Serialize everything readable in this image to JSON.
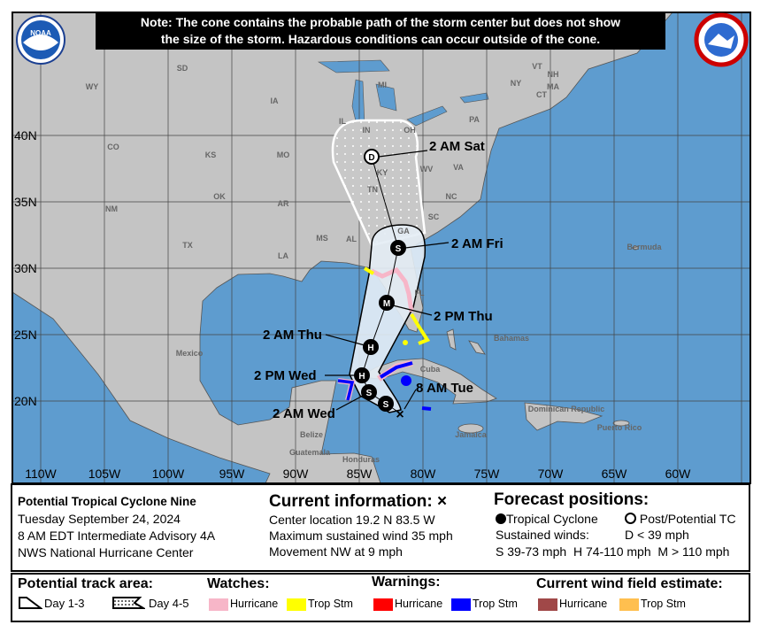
{
  "note": {
    "line1": "Note: The cone contains the probable path of the storm center but does not show",
    "line2": "the size of the storm. Hazardous conditions can occur outside of the cone."
  },
  "logos": {
    "left": "NOAA",
    "right": "NATIONAL WEATHER SERVICE"
  },
  "lat_labels": [
    "40N",
    "35N",
    "30N",
    "25N",
    "20N"
  ],
  "lon_labels": [
    "110W",
    "105W",
    "100W",
    "95W",
    "90W",
    "85W",
    "80W",
    "75W",
    "70W",
    "65W",
    "60W"
  ],
  "place_labels": [
    "WY",
    "SD",
    "IA",
    "MI",
    "VT",
    "NH",
    "NY",
    "MA",
    "CT",
    "PA",
    "CO",
    "KS",
    "MO",
    "IL",
    "IN",
    "OH",
    "WV",
    "VA",
    "KY",
    "NM",
    "OK",
    "AR",
    "TN",
    "NC",
    "SC",
    "TX",
    "MS",
    "AL",
    "GA",
    "LA",
    "FL",
    "Bermuda",
    "Bahamas",
    "Cuba",
    "Mexico",
    "Belize",
    "Guatemala",
    "Honduras",
    "Jamaica",
    "Dominican Republic",
    "Puerto Rico"
  ],
  "forecast_points": [
    {
      "letter": "D",
      "label": "2 AM Sat",
      "type": "post-potential"
    },
    {
      "letter": "S",
      "label": "2 AM Fri",
      "type": "tropical"
    },
    {
      "letter": "M",
      "label": "2 PM Thu",
      "type": "tropical"
    },
    {
      "letter": "H",
      "label": "2 AM Thu",
      "type": "tropical"
    },
    {
      "letter": "H",
      "label": "2 PM Wed",
      "type": "tropical"
    },
    {
      "letter": "S",
      "label": "2 AM Wed",
      "type": "tropical"
    },
    {
      "letter": "S",
      "label": "",
      "type": "tropical"
    },
    {
      "letter": "X",
      "label": "8 AM Tue",
      "type": "current"
    }
  ],
  "info": {
    "storm": "Potential Tropical Cyclone Nine",
    "date": "Tuesday September 24, 2024",
    "advisory": "8 AM EDT Intermediate Advisory 4A",
    "center": "NWS National Hurricane Center",
    "current_title": "Current information: ×",
    "location": "Center location 19.2 N 83.5 W",
    "wind": "Maximum sustained wind 35 mph",
    "movement": "Movement NW at 9 mph",
    "forecast_title": "Forecast positions:",
    "tc": "Tropical Cyclone",
    "ptc": "Post/Potential TC",
    "sust": "Sustained winds:",
    "d": "D < 39 mph",
    "shm": "S 39-73 mph  H 74-110 mph  M > 110 mph"
  },
  "legend": {
    "track_title": "Potential track area:",
    "day13": "Day 1-3",
    "day45": "Day 4-5",
    "watches_title": "Watches:",
    "warnings_title": "Warnings:",
    "wind_title": "Current wind field estimate:",
    "hurricane": "Hurricane",
    "tropstm": "Trop Stm"
  },
  "colors": {
    "ocean": "#5e9ccf",
    "land": "#c4c4c4",
    "hurricane_watch": "#f7b6c8",
    "ts_watch": "#ffff00",
    "hurricane_warning": "#ff0000",
    "ts_warning": "#0000ff",
    "hurricane_wind": "#a04848",
    "ts_wind": "#ffbf4f",
    "cone_day13": "#e4edf5"
  }
}
